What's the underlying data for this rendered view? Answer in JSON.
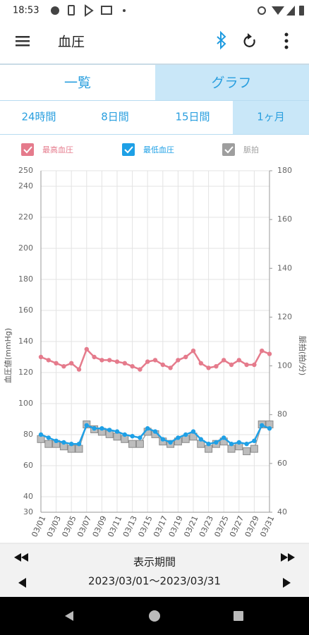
{
  "status_bar": {
    "time": "18:53"
  },
  "app_bar": {
    "title": "血圧"
  },
  "tabs": [
    "一覧",
    "グラフ"
  ],
  "periods": [
    "24時間",
    "8日間",
    "15日間",
    "1ヶ月"
  ],
  "chart_data": {
    "type": "line",
    "categories": [
      "03/01",
      null,
      "03/03",
      null,
      "03/05",
      null,
      "03/07",
      null,
      "03/09",
      null,
      "03/11",
      null,
      "03/13",
      null,
      "03/15",
      null,
      "03/17",
      null,
      "03/19",
      null,
      "03/21",
      null,
      "03/23",
      null,
      "03/25",
      null,
      "03/27",
      null,
      "03/29",
      null,
      "03/31"
    ],
    "series": [
      {
        "name": "脈拍",
        "color": "#9e9e9e",
        "axis": "y2",
        "marker": "square",
        "values": [
          70,
          68,
          68,
          67,
          66,
          66,
          76,
          74,
          73,
          72,
          71,
          70,
          68,
          68,
          73,
          72,
          69,
          68,
          69,
          70,
          71,
          68,
          66,
          68,
          69,
          66,
          67,
          65,
          66,
          76,
          76
        ]
      },
      {
        "name": "最高血圧",
        "color": "#e57b8c",
        "marker": "circle",
        "values": [
          130,
          128,
          126,
          124,
          126,
          122,
          135,
          130,
          128,
          128,
          127,
          126,
          124,
          122,
          127,
          128,
          125,
          123,
          128,
          130,
          134,
          126,
          123,
          124,
          128,
          125,
          128,
          125,
          125,
          134,
          132
        ]
      },
      {
        "name": "最低血圧",
        "color": "#1ea0e6",
        "marker": "circle",
        "values": [
          80,
          78,
          76,
          75,
          74,
          74,
          86,
          84,
          84,
          83,
          82,
          80,
          79,
          78,
          84,
          82,
          77,
          75,
          78,
          80,
          82,
          77,
          74,
          75,
          78,
          74,
          75,
          74,
          76,
          86,
          84
        ]
      }
    ],
    "legend_order": [
      "最高血圧",
      "最低血圧",
      "脈拍"
    ],
    "ylim": [
      30,
      250
    ],
    "yticks": [
      30,
      40,
      60,
      80,
      100,
      120,
      140,
      160,
      180,
      200,
      220,
      240,
      250
    ],
    "y2lim": [
      40,
      180
    ],
    "y2ticks": [
      40,
      60,
      80,
      100,
      120,
      140,
      160,
      180
    ],
    "ylabel": "血圧値(mmHg)",
    "y2label": "脈拍(拍/分)",
    "grid": true
  },
  "footer": {
    "label": "表示期間",
    "range": "2023/03/01～2023/03/31"
  }
}
